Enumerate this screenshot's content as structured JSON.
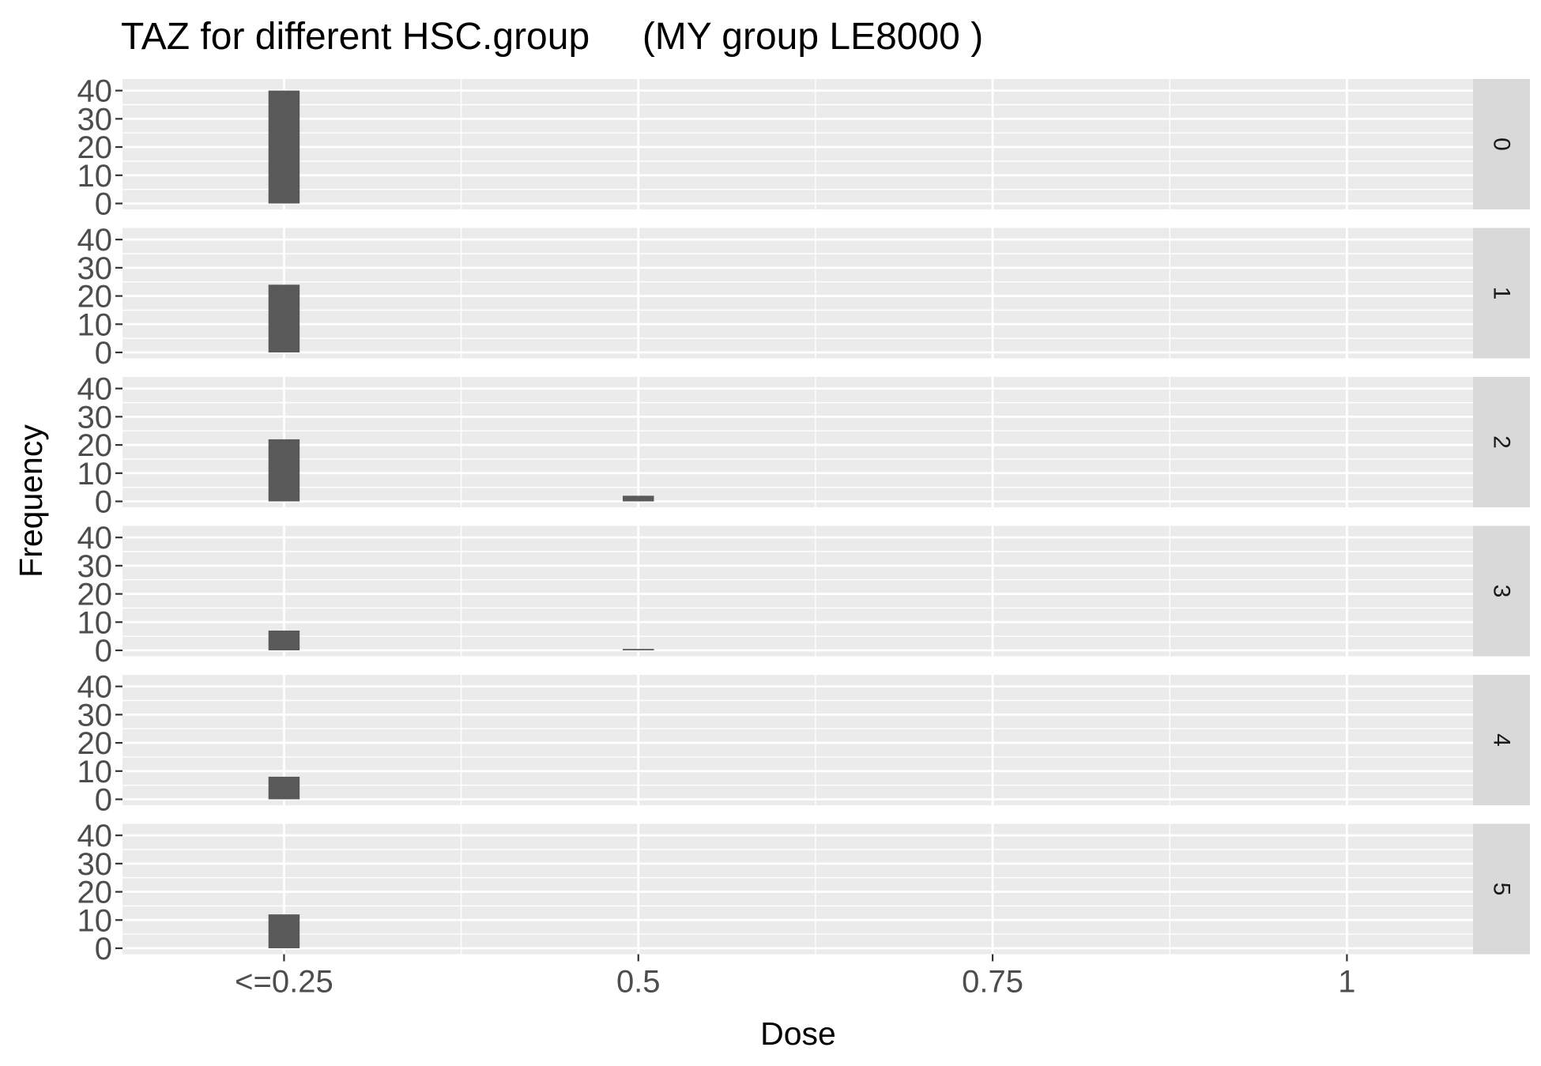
{
  "chart_data": {
    "type": "bar",
    "title": "TAZ for different HSC.group     (MY group LE8000 )",
    "xlabel": "Dose",
    "ylabel": "Frequency",
    "x_ticks": [
      {
        "label": "<=0.25",
        "value": 0.25
      },
      {
        "label": "0.5",
        "value": 0.5
      },
      {
        "label": "0.75",
        "value": 0.75
      },
      {
        "label": "1",
        "value": 1
      }
    ],
    "xlim": [
      0.136,
      1.089
    ],
    "ylim": [
      0,
      42
    ],
    "y_ticks": [
      0,
      10,
      20,
      30,
      40
    ],
    "bin_width": 0.022,
    "grid": true,
    "facet_by": "HSC.group",
    "panels": [
      {
        "strip": "0",
        "bars": [
          {
            "x": 0.25,
            "value": 40
          }
        ]
      },
      {
        "strip": "1",
        "bars": [
          {
            "x": 0.25,
            "value": 24
          }
        ]
      },
      {
        "strip": "2",
        "bars": [
          {
            "x": 0.25,
            "value": 22
          },
          {
            "x": 0.5,
            "value": 2
          }
        ]
      },
      {
        "strip": "3",
        "bars": [
          {
            "x": 0.25,
            "value": 7
          },
          {
            "x": 0.5,
            "value": 0.5
          }
        ]
      },
      {
        "strip": "4",
        "bars": [
          {
            "x": 0.25,
            "value": 8
          }
        ]
      },
      {
        "strip": "5",
        "bars": [
          {
            "x": 0.25,
            "value": 12
          }
        ]
      }
    ],
    "colors": {
      "panel_bg": "#ebebeb",
      "strip_bg": "#d9d9d9",
      "bar": "#595959",
      "grid": "#ffffff"
    }
  }
}
